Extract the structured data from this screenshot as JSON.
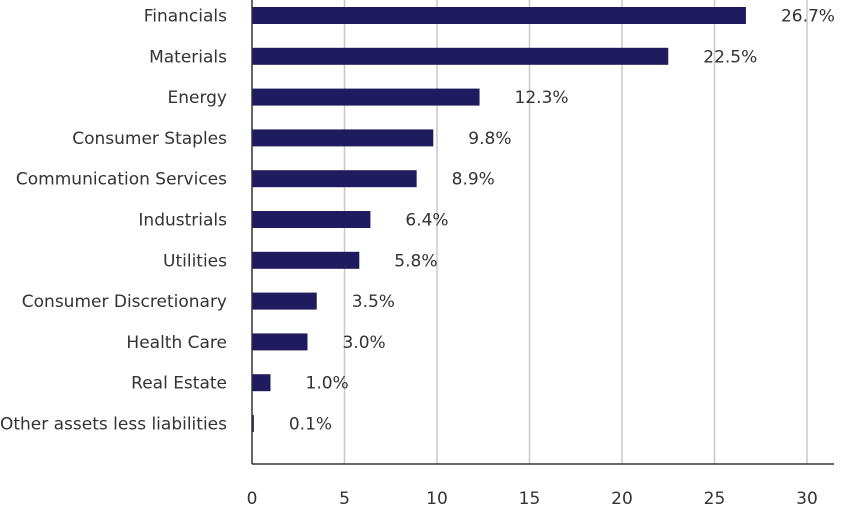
{
  "chart_data": {
    "type": "bar",
    "orientation": "horizontal",
    "title": "",
    "xlabel": "",
    "ylabel": "",
    "categories": [
      "Financials",
      "Materials",
      "Energy",
      "Consumer Staples",
      "Communication Services",
      "Industrials",
      "Utilities",
      "Consumer Discretionary",
      "Health Care",
      "Real Estate",
      "Other assets less liabilities"
    ],
    "values": [
      26.7,
      22.5,
      12.3,
      9.8,
      8.9,
      6.4,
      5.8,
      3.5,
      3.0,
      1.0,
      0.1
    ],
    "value_labels": [
      "26.7%",
      "22.5%",
      "12.3%",
      "9.8%",
      "8.9%",
      "6.4%",
      "5.8%",
      "3.5%",
      "3.0%",
      "1.0%",
      "0.1%"
    ],
    "xlim": [
      0,
      31
    ],
    "xticks": [
      0,
      5,
      10,
      15,
      20,
      25,
      30
    ],
    "grid": true,
    "bar_color": "#201a5f",
    "grid_color": "#c8c8c8",
    "axis_color": "#333333"
  }
}
